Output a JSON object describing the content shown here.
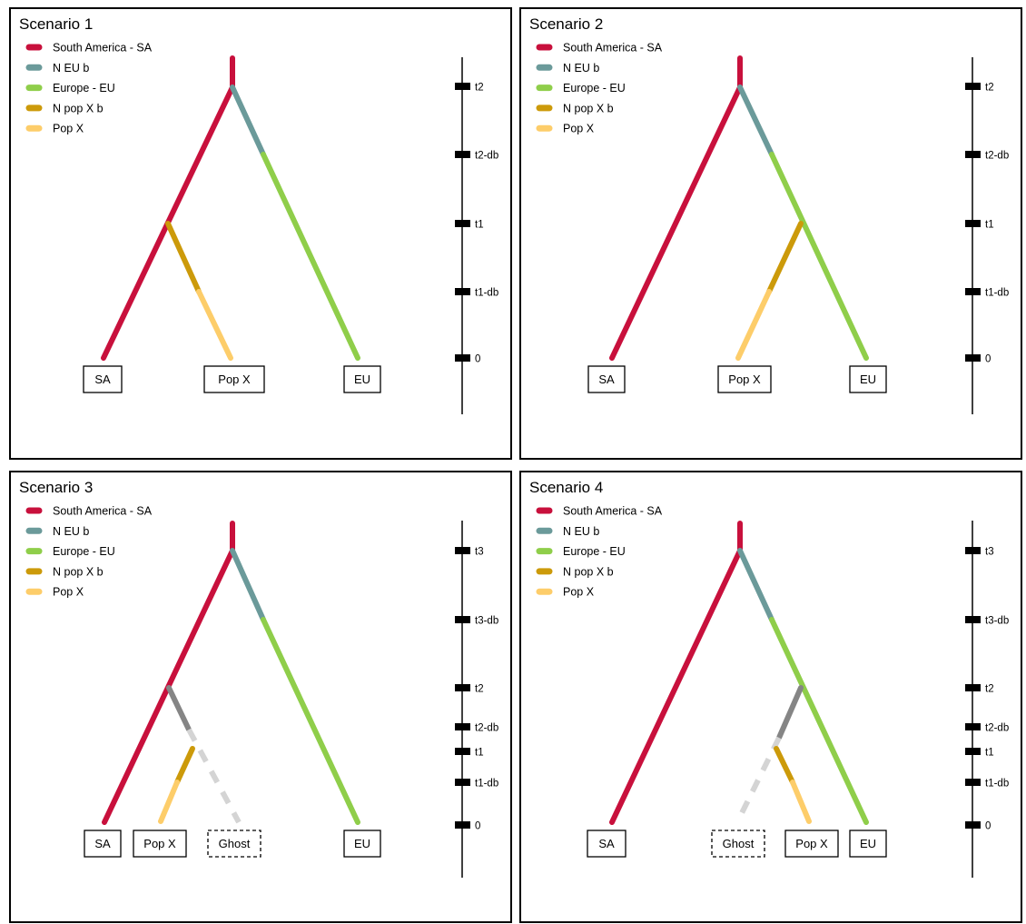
{
  "colors": {
    "south_america": "#c8103c",
    "n_eu_b": "#6b9a9a",
    "europe": "#8fce4a",
    "n_pop_x_b": "#cc9a0a",
    "pop_x": "#fdcd6a",
    "ghost_bottleneck": "#858585",
    "ghost": "#d4d4d4"
  },
  "legend": [
    {
      "label": "South America - SA",
      "color_key": "south_america"
    },
    {
      "label": "N EU b",
      "color_key": "n_eu_b"
    },
    {
      "label": "Europe - EU",
      "color_key": "europe"
    },
    {
      "label": "N pop X b",
      "color_key": "n_pop_x_b"
    },
    {
      "label": "Pop X",
      "color_key": "pop_x"
    }
  ],
  "scenarios": [
    {
      "title": "Scenario 1",
      "time_ticks": [
        "t2",
        "t2-db",
        "t1",
        "t1-db",
        "0"
      ],
      "populations": [
        "SA",
        "Pop X",
        "EU"
      ]
    },
    {
      "title": "Scenario 2",
      "time_ticks": [
        "t2",
        "t2-db",
        "t1",
        "t1-db",
        "0"
      ],
      "populations": [
        "SA",
        "Pop X",
        "EU"
      ]
    },
    {
      "title": "Scenario 3",
      "time_ticks": [
        "t3",
        "t3-db",
        "t2",
        "t2-db",
        "t1",
        "t1-db",
        "0"
      ],
      "populations": [
        "SA",
        "Pop X",
        "Ghost",
        "EU"
      ]
    },
    {
      "title": "Scenario 4",
      "time_ticks": [
        "t3",
        "t3-db",
        "t2",
        "t2-db",
        "t1",
        "t1-db",
        "0"
      ],
      "populations": [
        "SA",
        "Ghost",
        "Pop X",
        "EU"
      ]
    }
  ]
}
